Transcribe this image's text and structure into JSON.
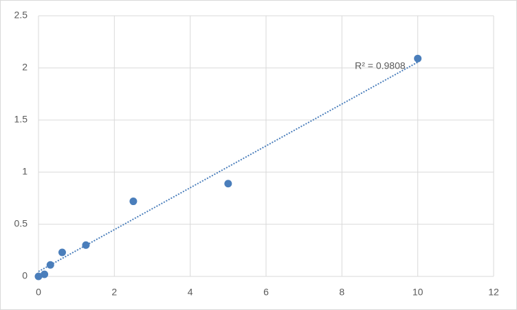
{
  "chart_data": {
    "type": "scatter",
    "x": [
      0,
      0.156,
      0.313,
      0.625,
      1.25,
      2.5,
      5,
      10
    ],
    "series": [
      {
        "color": "#4a7ebb",
        "values": [
          0,
          0.02,
          0.11,
          0.23,
          0.3,
          0.72,
          0.89,
          2.09
        ]
      }
    ],
    "trendline": "linear",
    "trendline_color": "#4a7ebb",
    "annotation": "R² = 0.9808",
    "xlim": [
      0,
      12
    ],
    "xticks": [
      0,
      2,
      4,
      6,
      8,
      10,
      12
    ],
    "ylim": [
      0,
      2.5
    ],
    "yticks": [
      0,
      0.5,
      1,
      1.5,
      2,
      2.5
    ],
    "grid": true
  }
}
